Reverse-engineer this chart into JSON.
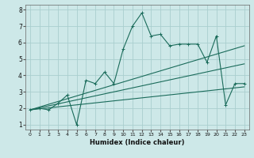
{
  "xlabel": "Humidex (Indice chaleur)",
  "bg_color": "#cde8e8",
  "grid_color": "#aacece",
  "line_color": "#1a6b5a",
  "xlim": [
    -0.5,
    23.5
  ],
  "ylim": [
    0.7,
    8.3
  ],
  "yticks": [
    1,
    2,
    3,
    4,
    5,
    6,
    7,
    8
  ],
  "xticks": [
    0,
    1,
    2,
    3,
    4,
    5,
    6,
    7,
    8,
    9,
    10,
    11,
    12,
    13,
    14,
    15,
    16,
    17,
    18,
    19,
    20,
    21,
    22,
    23
  ],
  "lines": [
    {
      "x": [
        0,
        1,
        2,
        3,
        4,
        5,
        6,
        7,
        8,
        9,
        10,
        11,
        12,
        13,
        14,
        15,
        16,
        17,
        18,
        19,
        20,
        21,
        22,
        23
      ],
      "y": [
        1.9,
        2.0,
        1.9,
        2.3,
        2.8,
        1.0,
        3.7,
        3.5,
        4.2,
        3.5,
        5.6,
        7.0,
        7.8,
        6.4,
        6.5,
        5.8,
        5.9,
        5.9,
        5.9,
        4.8,
        6.4,
        2.2,
        3.5,
        3.5
      ],
      "markers": true
    },
    {
      "x": [
        0,
        23
      ],
      "y": [
        1.9,
        5.8
      ],
      "markers": false
    },
    {
      "x": [
        0,
        23
      ],
      "y": [
        1.9,
        4.7
      ],
      "markers": false
    },
    {
      "x": [
        0,
        23
      ],
      "y": [
        1.9,
        3.3
      ],
      "markers": false
    }
  ]
}
